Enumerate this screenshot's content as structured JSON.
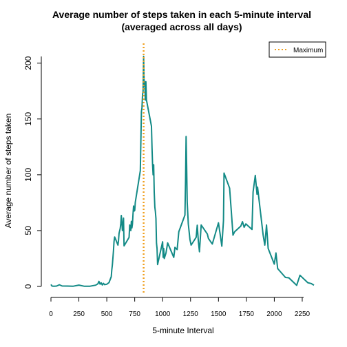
{
  "chart_data": {
    "type": "line",
    "title": "Average number of steps taken in each 5-minute interval",
    "subtitle": "(averaged across all days)",
    "xlabel": "5-minute Interval",
    "ylabel": "Average number of steps taken",
    "xlim": [
      0,
      2355
    ],
    "ylim": [
      0,
      206
    ],
    "x_ticks": [
      0,
      250,
      500,
      750,
      1000,
      1250,
      1500,
      1750,
      2000,
      2250
    ],
    "y_ticks": [
      0,
      50,
      100,
      150,
      200
    ],
    "grid": false,
    "legend": {
      "position": "top-right",
      "entries": [
        "Maximum"
      ]
    },
    "colors": {
      "series": "#138a86",
      "maximum": "#f0a020"
    },
    "series": [
      {
        "x": [
          0,
          10,
          25,
          50,
          75,
          100,
          150,
          200,
          250,
          300,
          350,
          400,
          420,
          430,
          440,
          450,
          460,
          470,
          480,
          500,
          520,
          540,
          545,
          550,
          560,
          565,
          570,
          580,
          600,
          605,
          610,
          620,
          625,
          630,
          640,
          650,
          655,
          700,
          705,
          715,
          720,
          725,
          730,
          735,
          740,
          745,
          750,
          755,
          800,
          805,
          810,
          815,
          820,
          825,
          830,
          835,
          840,
          845,
          850,
          855,
          900,
          905,
          910,
          915,
          920,
          925,
          930,
          935,
          940,
          945,
          950,
          955,
          1000,
          1005,
          1010,
          1015,
          1030,
          1045,
          1100,
          1110,
          1130,
          1145,
          1200,
          1205,
          1210,
          1215,
          1220,
          1230,
          1245,
          1255,
          1300,
          1310,
          1320,
          1330,
          1345,
          1400,
          1410,
          1430,
          1445,
          1500,
          1515,
          1530,
          1545,
          1550,
          1600,
          1615,
          1630,
          1645,
          1700,
          1715,
          1730,
          1745,
          1800,
          1810,
          1830,
          1845,
          1850,
          1900,
          1915,
          1930,
          1945,
          2000,
          2015,
          2030,
          2100,
          2130,
          2200,
          2230,
          2300,
          2330,
          2355
        ],
        "y": [
          1.7,
          0.3,
          0.2,
          0.3,
          1.5,
          0.4,
          0.3,
          0.2,
          1.2,
          0.1,
          0.2,
          1.1,
          2.3,
          4.5,
          2.0,
          3.2,
          1.3,
          2.8,
          1.6,
          2.0,
          3.4,
          8.7,
          15.0,
          19.2,
          31.8,
          40.0,
          44.3,
          42.0,
          37.0,
          40.8,
          47.5,
          52.0,
          56.1,
          63.5,
          50.0,
          61.2,
          36.3,
          44.0,
          55.1,
          50.0,
          58.3,
          52.4,
          56.0,
          64.9,
          72.0,
          67.5,
          68.1,
          75.3,
          103.7,
          130.0,
          156.6,
          160.0,
          171.2,
          175.0,
          206.2,
          179.6,
          183.4,
          167.0,
          183.4,
          167.0,
          143.5,
          124.0,
          109.1,
          100.0,
          109.0,
          84.5,
          71.0,
          67.0,
          60.8,
          38.8,
          34.0,
          19.6,
          40.0,
          26.0,
          34.0,
          25.0,
          30.0,
          39.0,
          26.0,
          35.0,
          33.0,
          49.0,
          63.9,
          94.7,
          134.3,
          108.0,
          75.3,
          56.0,
          42.0,
          37.0,
          44.0,
          54.8,
          40.5,
          31.0,
          55.0,
          47.0,
          43.0,
          40.0,
          38.0,
          57.0,
          47.0,
          36.0,
          59.0,
          101.5,
          88.0,
          67.0,
          45.9,
          49.0,
          54.0,
          58.0,
          53.0,
          56.0,
          51.0,
          84.6,
          99.5,
          82.6,
          89.0,
          46.0,
          37.0,
          55.0,
          34.0,
          20.0,
          30.0,
          16.0,
          8.0,
          7.7,
          1.0,
          10.0,
          3.3,
          2.6,
          1.1
        ]
      },
      {
        "x": [
          830,
          830
        ],
        "y": [
          0,
          206
        ]
      }
    ]
  }
}
